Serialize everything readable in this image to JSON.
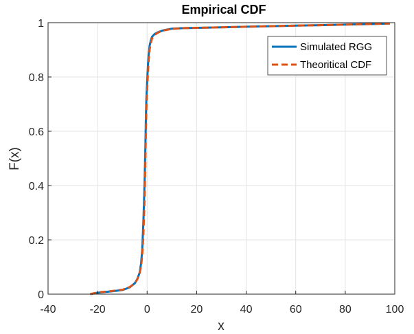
{
  "chart_data": {
    "type": "line",
    "title": "Empirical CDF",
    "xlabel": "x",
    "ylabel": "F(x)",
    "xlim": [
      -40,
      100
    ],
    "ylim": [
      0,
      1
    ],
    "xticks": [
      "-40",
      "-20",
      "0",
      "20",
      "40",
      "60",
      "80",
      "100"
    ],
    "yticks": [
      "0",
      "0.2",
      "0.4",
      "0.6",
      "0.8",
      "1"
    ],
    "grid": true,
    "legend_position": "top-right",
    "series": [
      {
        "name": "Simulated RGG",
        "color": "#0072BD",
        "style": "solid",
        "x": [
          -23,
          -20,
          -15,
          -10,
          -7,
          -5,
          -4,
          -3,
          -2.5,
          -2,
          -1.5,
          -1,
          -0.7,
          -0.5,
          -0.3,
          0,
          0.3,
          0.6,
          1,
          1.5,
          2,
          3,
          4,
          5,
          7,
          10,
          15,
          20,
          30,
          40,
          50,
          60,
          70,
          80,
          90,
          98
        ],
        "y": [
          0.0,
          0.005,
          0.01,
          0.015,
          0.025,
          0.04,
          0.055,
          0.08,
          0.11,
          0.16,
          0.27,
          0.42,
          0.55,
          0.65,
          0.72,
          0.78,
          0.84,
          0.88,
          0.915,
          0.935,
          0.948,
          0.958,
          0.963,
          0.967,
          0.973,
          0.978,
          0.98,
          0.981,
          0.983,
          0.985,
          0.987,
          0.989,
          0.991,
          0.993,
          0.995,
          0.997
        ]
      },
      {
        "name": "Theoritical CDF",
        "color": "#D95319",
        "style": "dashed",
        "x": [
          -23,
          -20,
          -15,
          -10,
          -7,
          -5,
          -4,
          -3,
          -2.5,
          -2,
          -1.5,
          -1,
          -0.7,
          -0.5,
          -0.3,
          0,
          0.3,
          0.6,
          1,
          1.5,
          2,
          3,
          4,
          5,
          7,
          10,
          15,
          20,
          30,
          40,
          50,
          60,
          70,
          80,
          90,
          98
        ],
        "y": [
          0.0,
          0.006,
          0.011,
          0.016,
          0.026,
          0.04,
          0.054,
          0.078,
          0.1,
          0.14,
          0.22,
          0.36,
          0.5,
          0.6,
          0.68,
          0.75,
          0.81,
          0.86,
          0.9,
          0.925,
          0.942,
          0.955,
          0.961,
          0.966,
          0.972,
          0.977,
          0.98,
          0.981,
          0.983,
          0.985,
          0.987,
          0.989,
          0.991,
          0.993,
          0.995,
          0.997
        ]
      }
    ]
  }
}
